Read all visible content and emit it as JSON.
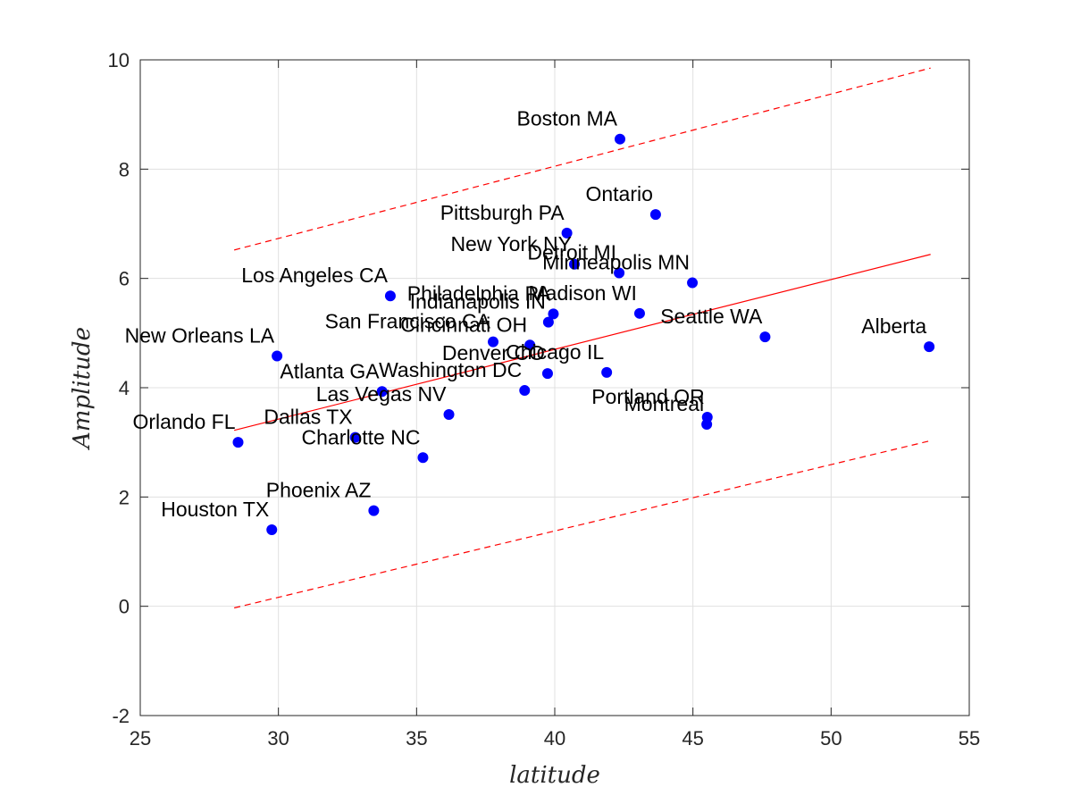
{
  "chart_data": {
    "type": "scatter",
    "xlabel": "latitude",
    "ylabel": "Amplitude",
    "xlim": [
      25,
      55
    ],
    "ylim": [
      -2,
      10
    ],
    "xticks": [
      25,
      30,
      35,
      40,
      45,
      50,
      55
    ],
    "yticks": [
      -2,
      0,
      2,
      4,
      6,
      8,
      10
    ],
    "grid": true,
    "colors": {
      "points": "#0000ff",
      "fit": "#ff0000",
      "grid": "#e0e0e0",
      "axis": "#262626"
    },
    "points": [
      {
        "label": "Boston MA",
        "x": 42.36,
        "y": 8.55
      },
      {
        "label": "Ontario",
        "x": 43.65,
        "y": 7.17
      },
      {
        "label": "Pittsburgh PA",
        "x": 40.44,
        "y": 6.83
      },
      {
        "label": "New York NY",
        "x": 40.71,
        "y": 6.26
      },
      {
        "label": "Detroit MI",
        "x": 42.33,
        "y": 6.1
      },
      {
        "label": "Minneapolis MN",
        "x": 44.98,
        "y": 5.92
      },
      {
        "label": "Los Angeles CA",
        "x": 34.05,
        "y": 5.68
      },
      {
        "label": "Philadelphia PA",
        "x": 39.95,
        "y": 5.35
      },
      {
        "label": "Madison WI",
        "x": 43.07,
        "y": 5.36
      },
      {
        "label": "Indianapolis IN",
        "x": 39.77,
        "y": 5.2
      },
      {
        "label": "Seattle WA",
        "x": 47.61,
        "y": 4.93
      },
      {
        "label": "Alberta",
        "x": 53.55,
        "y": 4.75
      },
      {
        "label": "San Francisco CA",
        "x": 37.77,
        "y": 4.84
      },
      {
        "label": "Cincinnati OH",
        "x": 39.1,
        "y": 4.78
      },
      {
        "label": "New Orleans LA",
        "x": 29.95,
        "y": 4.58
      },
      {
        "label": "Denver CO",
        "x": 39.74,
        "y": 4.26
      },
      {
        "label": "Chicago IL",
        "x": 41.88,
        "y": 4.28
      },
      {
        "label": "Washington DC",
        "x": 38.91,
        "y": 3.95
      },
      {
        "label": "Atlanta GA",
        "x": 33.75,
        "y": 3.93
      },
      {
        "label": "Las Vegas NV",
        "x": 36.17,
        "y": 3.51
      },
      {
        "label": "Portland OR",
        "x": 45.52,
        "y": 3.46
      },
      {
        "label": "Montreal",
        "x": 45.5,
        "y": 3.33
      },
      {
        "label": "Dallas TX",
        "x": 32.78,
        "y": 3.09
      },
      {
        "label": "Orlando FL",
        "x": 28.54,
        "y": 3.0
      },
      {
        "label": "Charlotte NC",
        "x": 35.23,
        "y": 2.72
      },
      {
        "label": "Phoenix AZ",
        "x": 33.45,
        "y": 1.75
      },
      {
        "label": "Houston TX",
        "x": 29.76,
        "y": 1.4
      }
    ],
    "fit_line": {
      "x": [
        28.4,
        53.6
      ],
      "y": [
        3.22,
        6.44
      ]
    },
    "upper_bound": {
      "x": [
        28.4,
        53.6
      ],
      "y": [
        6.52,
        9.85
      ]
    },
    "lower_bound": {
      "x": [
        28.4,
        53.6
      ],
      "y": [
        -0.03,
        3.03
      ]
    }
  }
}
